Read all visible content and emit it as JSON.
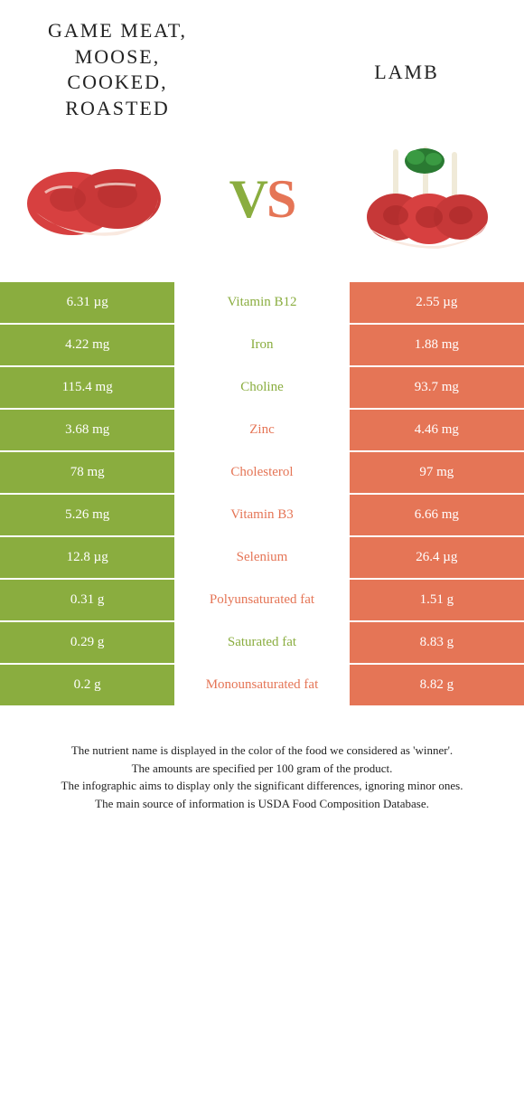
{
  "titles": {
    "left": "GAME MEAT,\nMOOSE,\nCOOKED,\nROASTED",
    "right": "LAMB",
    "vs_v": "V",
    "vs_s": "S"
  },
  "colors": {
    "left": "#8aad3f",
    "right": "#e57556",
    "meat_red": "#d74040",
    "meat_fat": "#f9e9e0",
    "bone": "#f0ead8",
    "parsley": "#2a7a32"
  },
  "rows": [
    {
      "left": "6.31 µg",
      "nutrient": "Vitamin B12",
      "right": "2.55 µg",
      "winner": "left"
    },
    {
      "left": "4.22 mg",
      "nutrient": "Iron",
      "right": "1.88 mg",
      "winner": "left"
    },
    {
      "left": "115.4 mg",
      "nutrient": "Choline",
      "right": "93.7 mg",
      "winner": "left"
    },
    {
      "left": "3.68 mg",
      "nutrient": "Zinc",
      "right": "4.46 mg",
      "winner": "right"
    },
    {
      "left": "78 mg",
      "nutrient": "Cholesterol",
      "right": "97 mg",
      "winner": "right"
    },
    {
      "left": "5.26 mg",
      "nutrient": "Vitamin B3",
      "right": "6.66 mg",
      "winner": "right"
    },
    {
      "left": "12.8 µg",
      "nutrient": "Selenium",
      "right": "26.4 µg",
      "winner": "right"
    },
    {
      "left": "0.31 g",
      "nutrient": "Polyunsaturated fat",
      "right": "1.51 g",
      "winner": "right"
    },
    {
      "left": "0.29 g",
      "nutrient": "Saturated fat",
      "right": "8.83 g",
      "winner": "left"
    },
    {
      "left": "0.2 g",
      "nutrient": "Monounsaturated fat",
      "right": "8.82 g",
      "winner": "right"
    }
  ],
  "footer": [
    "The nutrient name is displayed in the color of the food we considered as 'winner'.",
    "The amounts are specified per 100 gram of the product.",
    "The infographic aims to display only the significant differences, ignoring minor ones.",
    "The main source of information is USDA Food Composition Database."
  ]
}
